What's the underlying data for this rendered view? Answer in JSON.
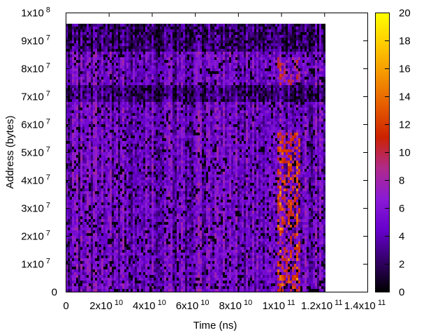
{
  "chart_data": {
    "type": "heatmap",
    "title": "",
    "xlabel": "Time (ns)",
    "ylabel": "Address (bytes)",
    "xlim": [
      0,
      140000000000
    ],
    "ylim": [
      0,
      100000000
    ],
    "x_ticks": [
      {
        "value": 0,
        "mantissa": "0",
        "exp": ""
      },
      {
        "value": 20000000000,
        "mantissa": "2x10",
        "exp": "10"
      },
      {
        "value": 40000000000,
        "mantissa": "4x10",
        "exp": "10"
      },
      {
        "value": 60000000000,
        "mantissa": "6x10",
        "exp": "10"
      },
      {
        "value": 80000000000,
        "mantissa": "8x10",
        "exp": "10"
      },
      {
        "value": 100000000000,
        "mantissa": "1x10",
        "exp": "11"
      },
      {
        "value": 120000000000,
        "mantissa": "1.2x10",
        "exp": "11"
      },
      {
        "value": 140000000000,
        "mantissa": "1.4x10",
        "exp": "11"
      }
    ],
    "y_ticks": [
      {
        "value": 0,
        "mantissa": "0",
        "exp": ""
      },
      {
        "value": 10000000,
        "mantissa": "1x10",
        "exp": "7"
      },
      {
        "value": 20000000,
        "mantissa": "2x10",
        "exp": "7"
      },
      {
        "value": 30000000,
        "mantissa": "3x10",
        "exp": "7"
      },
      {
        "value": 40000000,
        "mantissa": "4x10",
        "exp": "7"
      },
      {
        "value": 50000000,
        "mantissa": "5x10",
        "exp": "7"
      },
      {
        "value": 60000000,
        "mantissa": "6x10",
        "exp": "7"
      },
      {
        "value": 70000000,
        "mantissa": "7x10",
        "exp": "7"
      },
      {
        "value": 80000000,
        "mantissa": "8x10",
        "exp": "7"
      },
      {
        "value": 90000000,
        "mantissa": "9x10",
        "exp": "7"
      },
      {
        "value": 100000000,
        "mantissa": "1x10",
        "exp": "8"
      }
    ],
    "colorbar": {
      "min": 0,
      "max": 20,
      "ticks": [
        0,
        2,
        4,
        6,
        8,
        10,
        12,
        14,
        16,
        18,
        20
      ],
      "palette": [
        "#000000",
        "#330066",
        "#6600cc",
        "#8a1ad6",
        "#b02a8a",
        "#cc2200",
        "#e65c00",
        "#f59500",
        "#ffcc00",
        "#ffff00"
      ]
    },
    "heatmap_extent": {
      "x": [
        0,
        120000000000
      ],
      "y": [
        0,
        96000000
      ]
    },
    "grid": false,
    "legend": "colorbar-right"
  }
}
